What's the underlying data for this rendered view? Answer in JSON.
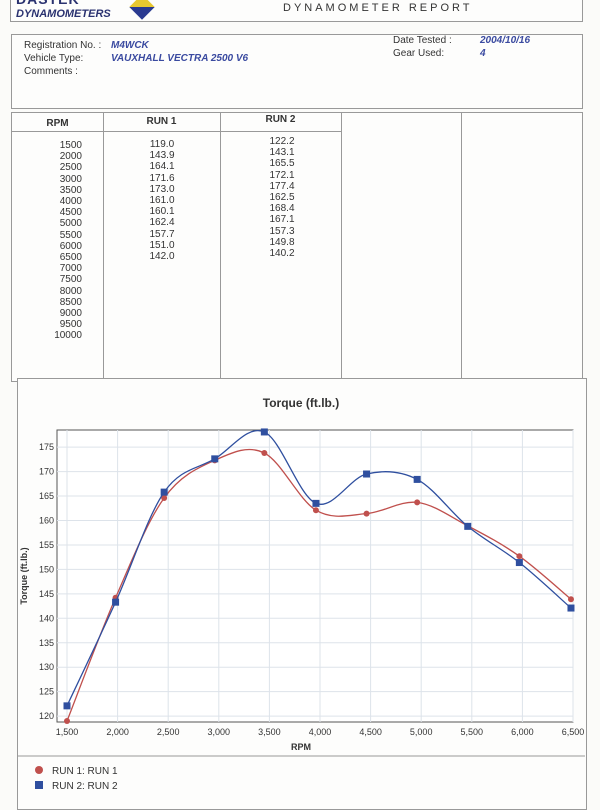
{
  "header": {
    "logo_text": "DASTEK DYNAMOMETERS",
    "title": "DYNAMOMETER REPORT"
  },
  "info": {
    "registration_label": "Registration No. :",
    "registration": "M4WCK",
    "vehicle_label": "Vehicle Type:",
    "vehicle": "VAUXHALL VECTRA 2500 V6",
    "comments_label": "Comments :",
    "date_label": "Date Tested :",
    "date": "2004/10/16",
    "gear_label": "Gear Used:",
    "gear": "4"
  },
  "table": {
    "headers": [
      "RPM",
      "RUN 1",
      "RUN 2"
    ],
    "rpm": "1500\n2000\n2500\n3000\n3500\n4000\n4500\n5000\n5500\n6000\n6500\n7000\n7500\n8000\n8500\n9000\n9500\n10000",
    "run1": "119.0\n143.9\n164.1\n171.6\n173.0\n161.0\n160.1\n162.4\n157.7\n151.0\n142.0",
    "run2": "122.2\n143.1\n165.5\n172.1\n177.4\n162.5\n168.4\n167.1\n157.3\n149.8\n140.2"
  },
  "chart_data": {
    "type": "line",
    "title": "Torque (ft.lb.)",
    "xlabel": "RPM",
    "ylabel": "Torque (ft.lb.)",
    "xlim": [
      1500,
      6500
    ],
    "ylim": [
      118.8,
      178.5
    ],
    "xticks": [
      "1,500",
      "2,000",
      "2,500",
      "3,000",
      "3,500",
      "4,000",
      "4,500",
      "5,000",
      "5,500",
      "6,000",
      "6,500"
    ],
    "yticks": [
      120,
      125,
      130,
      135,
      140,
      145,
      150,
      155,
      160,
      165,
      170,
      175
    ],
    "grid": true,
    "legend": "bottom-left",
    "x": [
      1500,
      1980,
      2460,
      2960,
      3450,
      3960,
      4460,
      4960,
      5460,
      5970,
      6480
    ],
    "series": [
      {
        "name": "RUN 1: RUN 1",
        "color": "#c0504d",
        "marker": "circle",
        "values": [
          119.0,
          144.2,
          164.6,
          172.3,
          173.8,
          162.1,
          161.4,
          163.7,
          158.9,
          152.7,
          143.9
        ]
      },
      {
        "name": "RUN 2: RUN 2",
        "color": "#2f4f9f",
        "marker": "square",
        "values": [
          122.1,
          143.3,
          165.8,
          172.6,
          178.1,
          163.5,
          169.5,
          168.4,
          158.8,
          151.4,
          142.1
        ]
      }
    ]
  }
}
